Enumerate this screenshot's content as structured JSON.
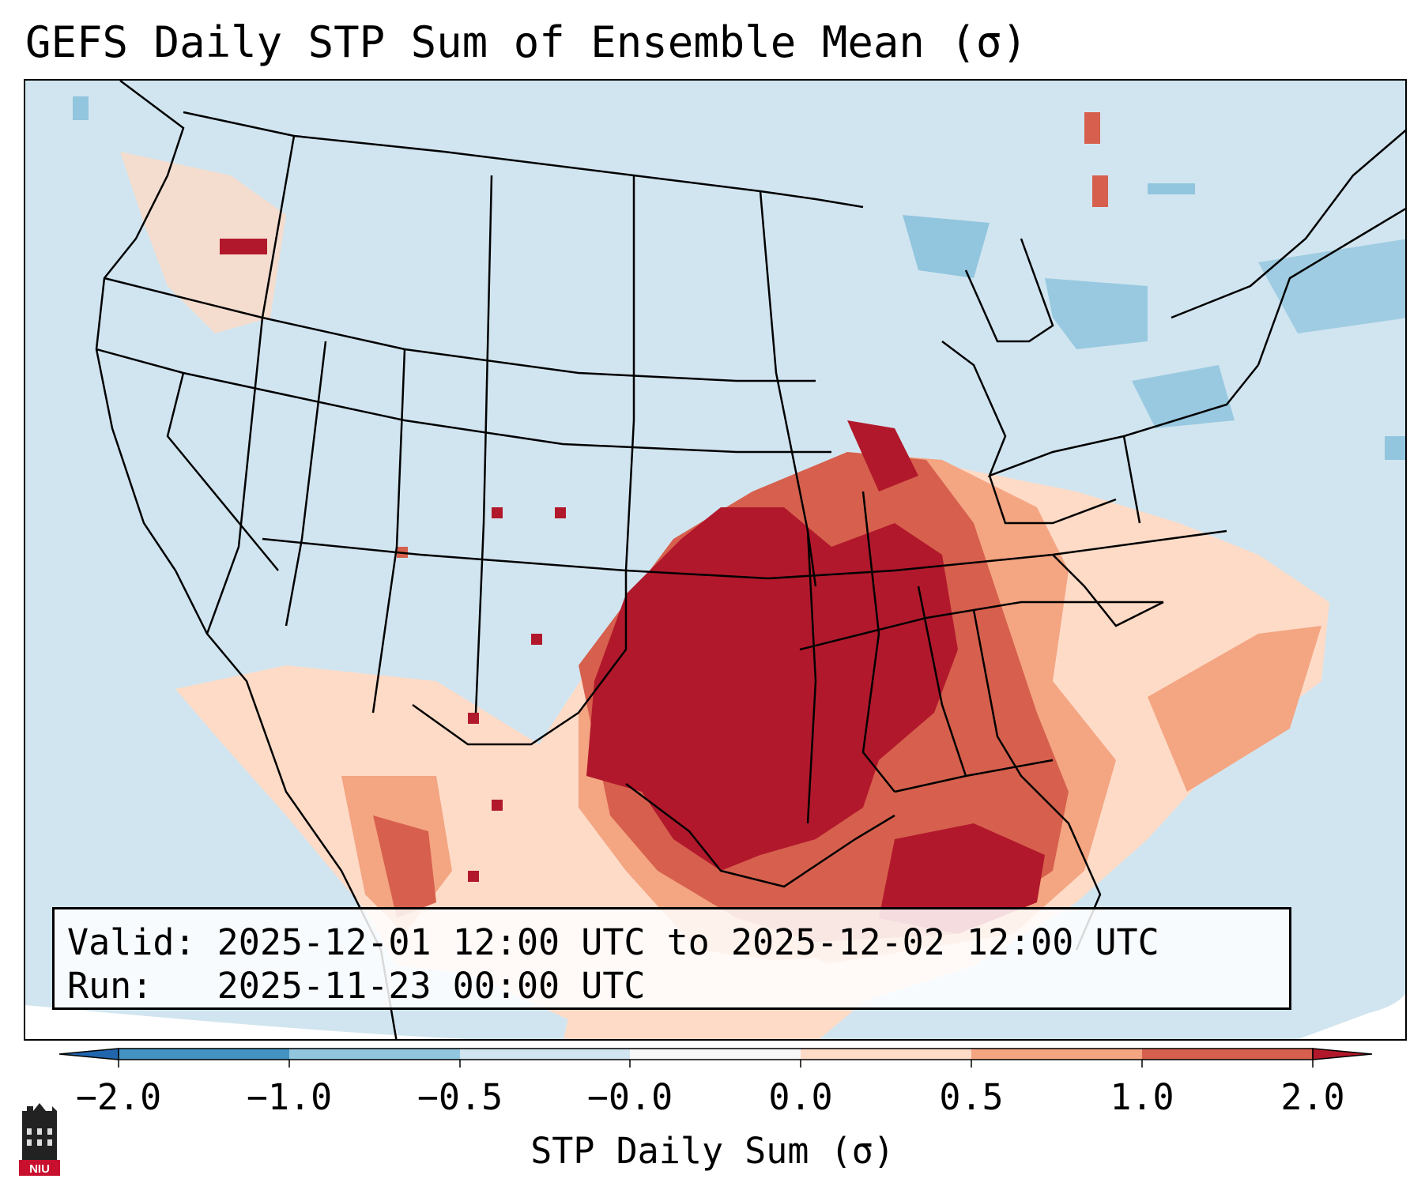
{
  "title": "GEFS Daily STP Sum of Ensemble Mean (σ)",
  "info_box": {
    "valid_label": "Valid:",
    "valid_value": "2025-12-01 12:00 UTC to 2025-12-02 12:00 UTC",
    "run_label": "Run:",
    "run_value": "2025-11-23 00:00 UTC"
  },
  "colorbar": {
    "label": "STP Daily Sum (σ)",
    "ticks": [
      "−2.0",
      "−1.0",
      "−0.5",
      "−0.0",
      "0.0",
      "0.5",
      "1.0",
      "2.0"
    ],
    "bin_colors": [
      "#2166ac",
      "#4393c3",
      "#92c5de",
      "#d1e5f0",
      "#f7f7f7",
      "#fddbc7",
      "#f4a582",
      "#d6604d",
      "#b2182b"
    ]
  },
  "map": {
    "region": "Contiguous United States",
    "background_color": "#d1e5f0",
    "anomaly_colors": {
      "strong": "#b2182b",
      "moderate": "#d6604d",
      "weak": "#f4a582",
      "slight": "#fddbc7",
      "negative": "#92c5de"
    }
  },
  "logo": {
    "text": "NIU"
  }
}
